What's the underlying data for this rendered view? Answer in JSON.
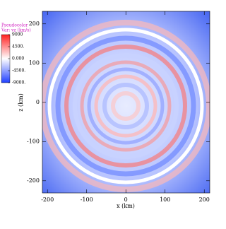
{
  "chart_data": {
    "type": "pseudocolor",
    "legend_title": "Pseudocolor",
    "variable": "Var: vz (km/s)",
    "xlabel": "x  (km)",
    "ylabel": "z  (km)",
    "xlim": [
      -213,
      214
    ],
    "ylim": [
      -231,
      232
    ],
    "xticks": [
      -200,
      -100,
      0,
      100,
      200
    ],
    "yticks": [
      -200,
      -100,
      0,
      100,
      200
    ],
    "colorbar": {
      "lim": [
        -9000,
        9000
      ],
      "colors": [
        "#2040ff",
        "#ffffff",
        "#ff2020"
      ],
      "ticks": [
        9000,
        {
          "value": 4500,
          "label": "4500."
        },
        {
          "value": 0,
          "label": "0.000"
        },
        {
          "value": -4500,
          "label": "-4500."
        },
        {
          "value": -9000,
          "label": "-9000."
        }
      ]
    }
  }
}
